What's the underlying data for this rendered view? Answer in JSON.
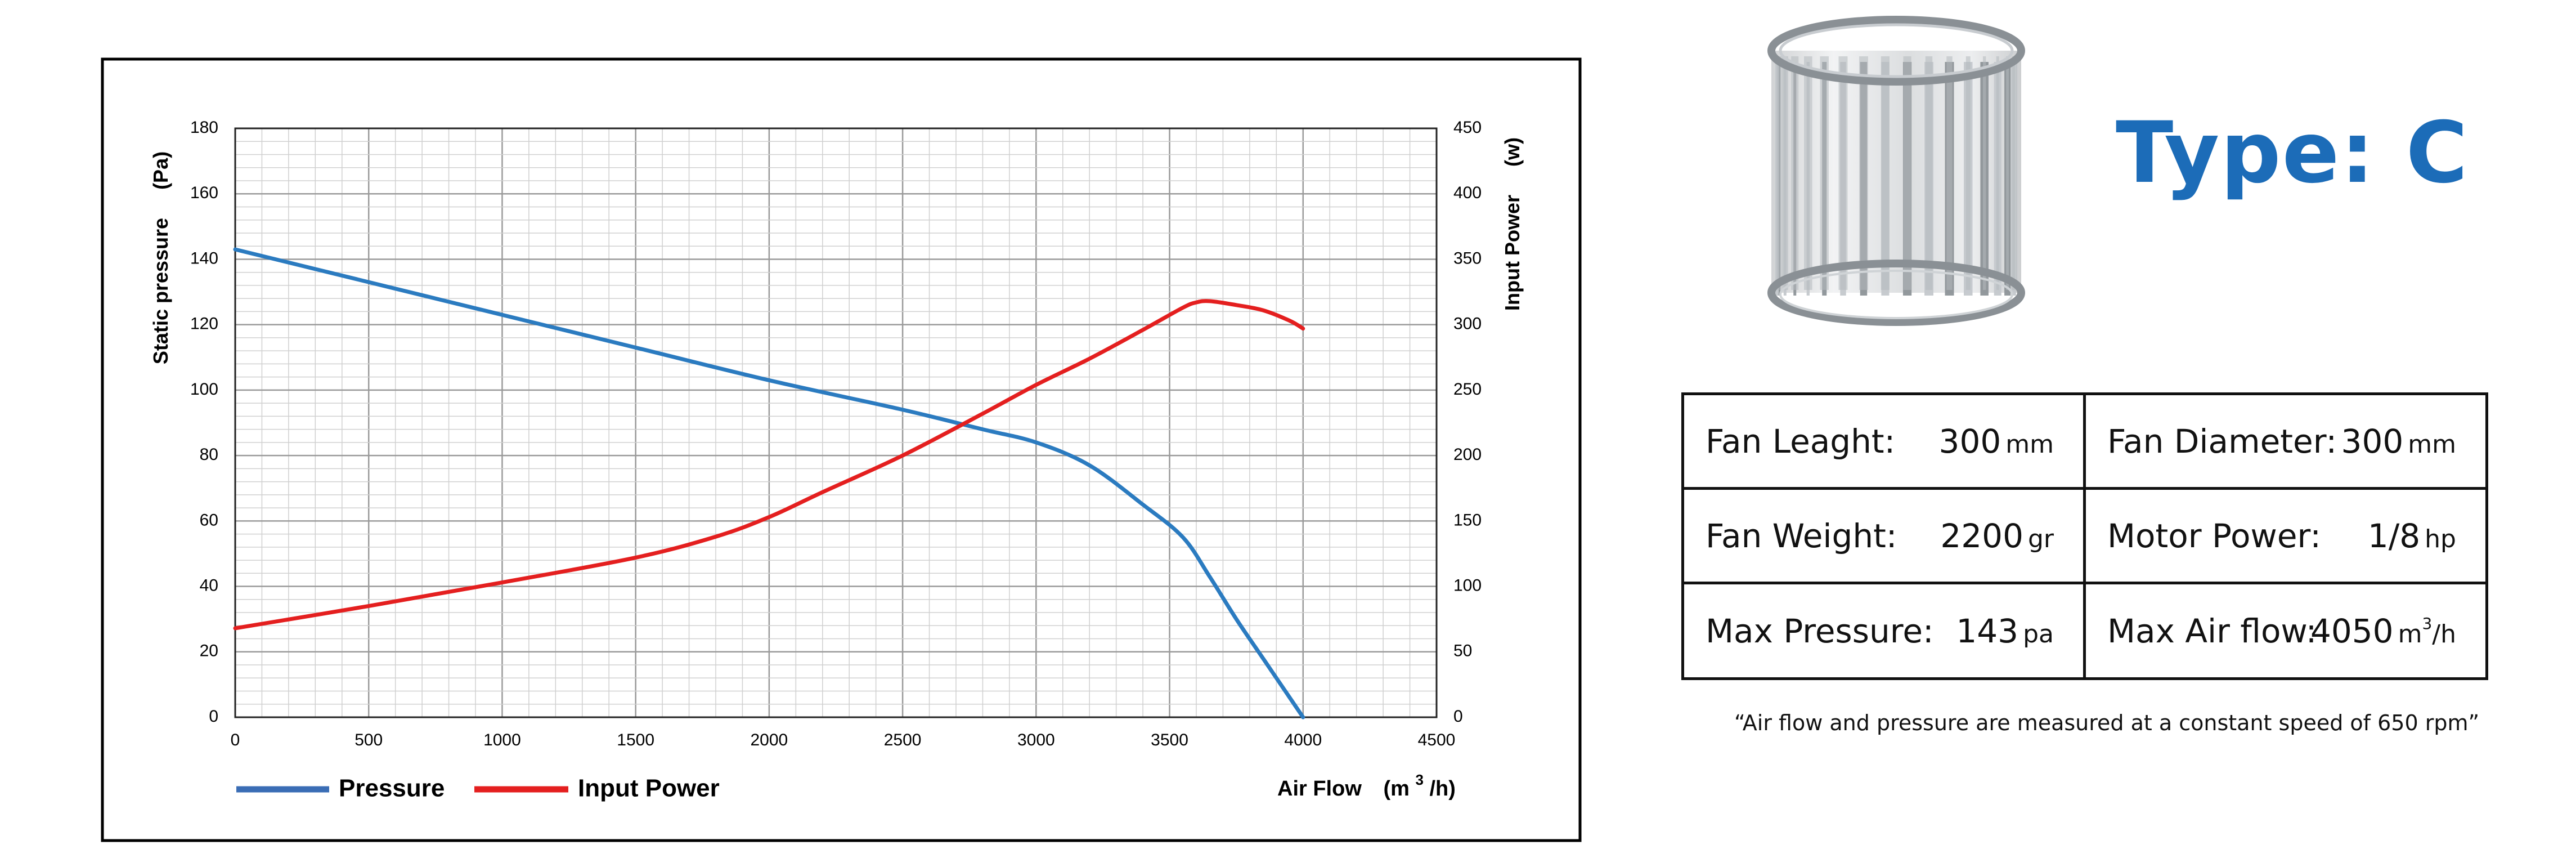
{
  "chart_data": {
    "type": "line",
    "xlabel": "Air Flow",
    "xlabel_unit_prefix": "(m",
    "xlabel_unit_sup": "3",
    "xlabel_unit_suffix": "/h)",
    "ylabel_left": "Static pressure     (Pa)",
    "ylabel_right": "Input Power     (w)",
    "xlim": [
      0,
      4500
    ],
    "ylim_left": [
      0,
      180
    ],
    "ylim_right": [
      0,
      450
    ],
    "x_ticks": [
      0,
      500,
      1000,
      1500,
      2000,
      2500,
      3000,
      3500,
      4000,
      4500
    ],
    "x_tick_labels": [
      "0",
      "500",
      "1000",
      "1500",
      "2000",
      "2500",
      "3000",
      "3500",
      "4000",
      "4500"
    ],
    "y_ticks_left": [
      0,
      20,
      40,
      60,
      80,
      100,
      120,
      140,
      160,
      180
    ],
    "y_tick_labels_left": [
      "0",
      "20",
      "40",
      "60",
      "80",
      "100",
      "120",
      "140",
      "160",
      "180"
    ],
    "y_ticks_right": [
      0,
      50,
      100,
      150,
      200,
      250,
      300,
      350,
      400,
      450
    ],
    "y_tick_labels_right": [
      "0",
      "50",
      "100",
      "150",
      "200",
      "250",
      "300",
      "350",
      "400",
      "450"
    ],
    "grid": true,
    "legend": "bottom-left",
    "series": [
      {
        "name": "Pressure",
        "axis": "left",
        "color": "#2b7bc0",
        "legend_color": "#3a6db5",
        "x": [
          0,
          500,
          1000,
          1500,
          2000,
          2500,
          2800,
          3000,
          3200,
          3400,
          3550,
          3650,
          3750,
          3850,
          3950,
          4000
        ],
        "y": [
          143,
          133,
          123,
          113,
          103,
          94,
          88,
          84,
          77,
          65,
          55,
          43,
          30,
          18,
          6,
          0
        ]
      },
      {
        "name": "Input Power",
        "axis": "right",
        "color": "#e41f1f",
        "legend_color": "#e41f1f",
        "x": [
          0,
          500,
          1000,
          1500,
          1800,
          2000,
          2200,
          2500,
          2800,
          3000,
          3200,
          3400,
          3550,
          3600,
          3650,
          3750,
          3850,
          3950,
          4000
        ],
        "y": [
          68,
          85,
          103,
          122,
          138,
          153,
          172,
          200,
          232,
          254,
          274,
          296,
          313,
          317,
          318,
          315,
          311,
          303,
          297
        ]
      }
    ]
  },
  "title": {
    "type_label": "Type: C"
  },
  "colors": {
    "brand_blue": "#1c6cb8",
    "grid_major": "#9a9a9a",
    "grid_minor": "#d0d0d0",
    "impeller_metal": "#a9aeb3"
  },
  "image": {
    "icon": "blower-wheel-icon"
  },
  "specs": {
    "fan_length_label": "Fan Leaght:",
    "fan_length_value": "300",
    "fan_length_unit": "mm",
    "fan_diameter_label": "Fan Diameter:",
    "fan_diameter_value": "300",
    "fan_diameter_unit": "mm",
    "fan_weight_label": "Fan Weight:",
    "fan_weight_value": "2200",
    "fan_weight_unit": "gr",
    "motor_power_label": "Motor Power:",
    "motor_power_value": "1/8",
    "motor_power_unit": "hp",
    "max_pressure_label": "Max Pressure:",
    "max_pressure_value": "143",
    "max_pressure_unit": "pa",
    "max_airflow_label": "Max Air flow:",
    "max_airflow_value": "4050",
    "max_airflow_unit_prefix": "m",
    "max_airflow_unit_sup": "3",
    "max_airflow_unit_suffix": "/h"
  },
  "note": "“Air flow and pressure are measured at a constant speed of 650 rpm”"
}
